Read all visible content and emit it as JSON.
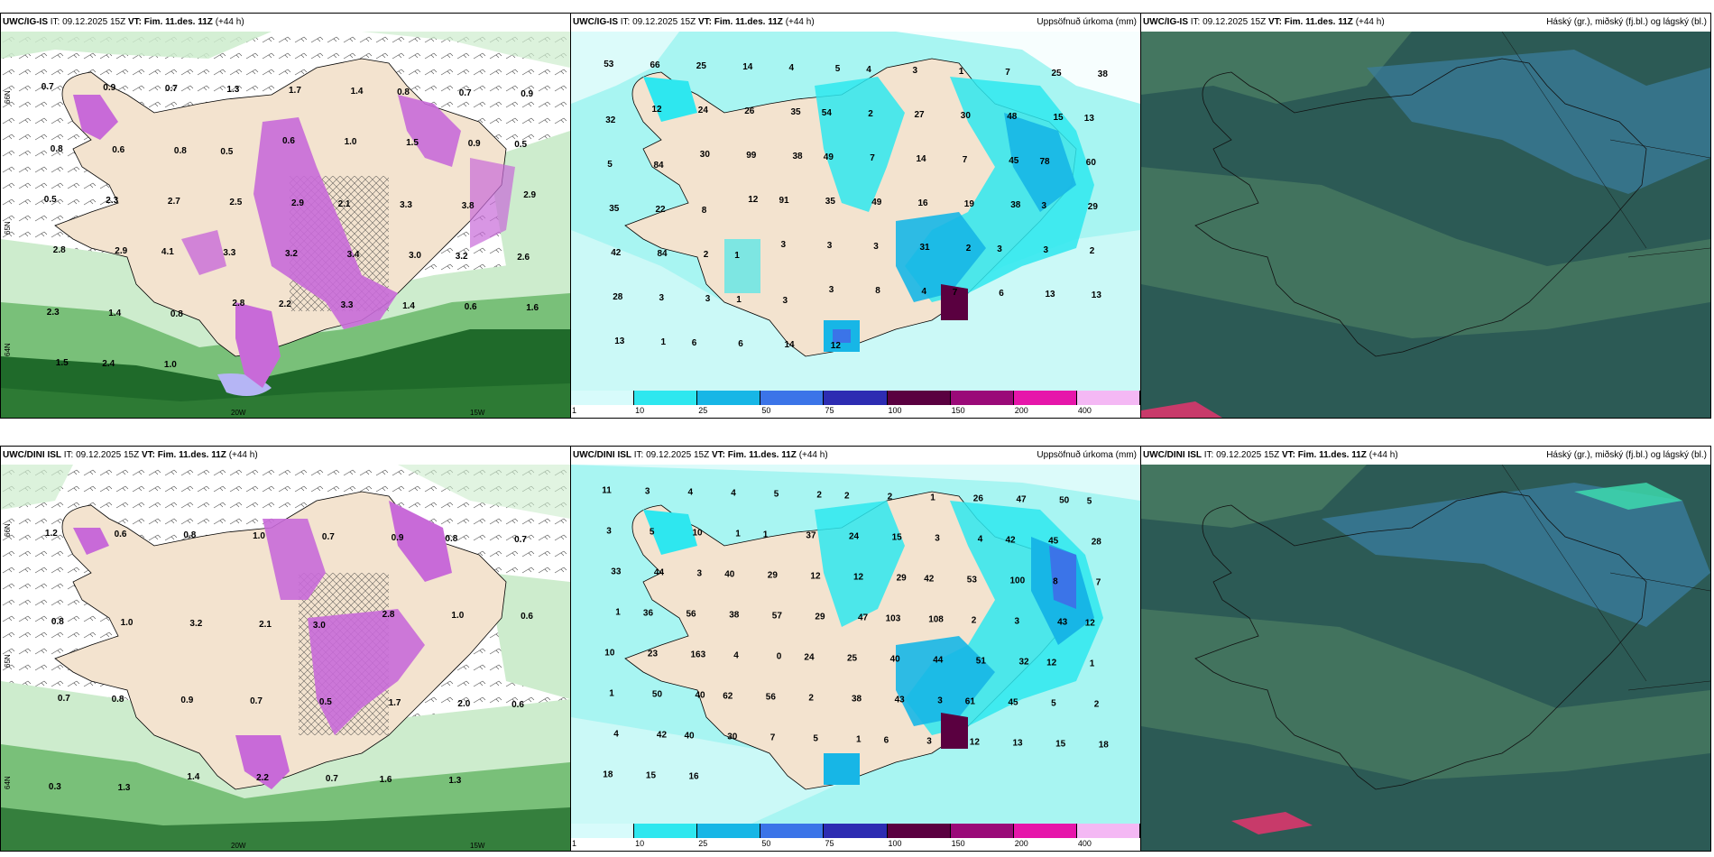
{
  "colors": {
    "land": "#f3e3cf",
    "sea": "#ffffff",
    "green_light": "#cdeccd",
    "green_mid": "#79c079",
    "green_dark": "#1f6a2a",
    "magenta": "#c86ad8",
    "precip_sea": "#a8f5f2",
    "cloud_dark": "#2c5a55",
    "cloud_mid": "#4b7d63",
    "cloud_blue": "#3a7ea0"
  },
  "legend": {
    "colors": [
      "#d7fbfb",
      "#2ee7ef",
      "#17b6e6",
      "#3b74e8",
      "#2d2cb2",
      "#5a0040",
      "#9a0a78",
      "#e616aa",
      "#f4b8f4"
    ],
    "ticks": [
      "1",
      "10",
      "25",
      "50",
      "75",
      "100",
      "150",
      "200",
      "400"
    ]
  },
  "rows": [
    {
      "model": "UWC/IG-IS",
      "it_label": "IT:",
      "it_value": "09.12.2025 15Z",
      "vt_label": "VT:",
      "vt_value": "Fim. 11.des. 11Z",
      "lead": "(+44 h)",
      "precip_title": "Uppsöfnuð úrkoma (mm)",
      "cloud_title": "Háský (gr.), miðský (fj.bl.) og lágský (bl.)",
      "axis": [
        "66N",
        "65N",
        "64N",
        "20W",
        "15W"
      ],
      "precip_values": [
        "53",
        "66",
        "25",
        "14",
        "4",
        "5",
        "4",
        "3",
        "1",
        "7",
        "25",
        "38",
        "32",
        "12",
        "24",
        "26",
        "35",
        "54",
        "2",
        "27",
        "30",
        "48",
        "15",
        "13",
        "5",
        "84",
        "30",
        "99",
        "38",
        "49",
        "7",
        "14",
        "7",
        "45",
        "78",
        "60",
        "35",
        "22",
        "8",
        "12",
        "91",
        "35",
        "49",
        "16",
        "19",
        "38",
        "3",
        "29",
        "42",
        "84",
        "2",
        "1",
        "3",
        "3",
        "3",
        "31",
        "2",
        "3",
        "3",
        "2",
        "28",
        "3",
        "3",
        "1",
        "3",
        "3",
        "8",
        "4",
        "7",
        "6",
        "13",
        "13",
        "13",
        "1",
        "6",
        "6",
        "14",
        "12"
      ],
      "cloud_note": ""
    },
    {
      "model": "UWC/DINI ISL",
      "it_label": "IT:",
      "it_value": "09.12.2025 15Z",
      "vt_label": "VT:",
      "vt_value": "Fim. 11.des. 11Z",
      "lead": "(+44 h)",
      "precip_title": "Uppsöfnuð úrkoma (mm)",
      "cloud_title": "Háský (gr.), miðský (fj.bl.) og lágský (bl.)",
      "axis": [
        "66N",
        "65N",
        "64N",
        "20W",
        "15W"
      ],
      "precip_values": [
        "11",
        "3",
        "4",
        "4",
        "5",
        "2",
        "2",
        "2",
        "1",
        "26",
        "47",
        "50",
        "5",
        "3",
        "5",
        "10",
        "1",
        "1",
        "37",
        "24",
        "15",
        "3",
        "4",
        "42",
        "45",
        "28",
        "33",
        "44",
        "3",
        "40",
        "29",
        "12",
        "12",
        "29",
        "42",
        "53",
        "100",
        "8",
        "7",
        "1",
        "36",
        "56",
        "38",
        "57",
        "29",
        "47",
        "103",
        "108",
        "2",
        "3",
        "43",
        "12",
        "10",
        "23",
        "163",
        "4",
        "0",
        "24",
        "25",
        "40",
        "44",
        "51",
        "32",
        "12",
        "1",
        "1",
        "50",
        "40",
        "62",
        "56",
        "2",
        "38",
        "43",
        "3",
        "61",
        "45",
        "5",
        "2",
        "4",
        "42",
        "40",
        "30",
        "7",
        "5",
        "1",
        "6",
        "3",
        "12",
        "13",
        "15",
        "18",
        "18",
        "15",
        "16"
      ],
      "cloud_note": ""
    }
  ],
  "wind_labels_row1": [
    "0.7",
    "0.9",
    "0.7",
    "1.3",
    "1.7",
    "1.4",
    "0.8",
    "0.7",
    "0.9",
    "0.8",
    "0.6",
    "0.8",
    "0.5",
    "0.6",
    "1.0",
    "1.5",
    "0.9",
    "0.5",
    "0.5",
    "2.3",
    "2.7",
    "2.5",
    "2.9",
    "2.1",
    "3.3",
    "3.8",
    "2.9",
    "2.8",
    "2.9",
    "4.1",
    "3.3",
    "3.2",
    "3.4",
    "3.0",
    "3.2",
    "2.6",
    "2.3",
    "1.4",
    "0.8",
    "2.8",
    "2.2",
    "3.3",
    "1.4",
    "0.6",
    "1.6",
    "1.5",
    "2.4",
    "1.0"
  ],
  "wind_labels_row2": [
    "1.2",
    "0.6",
    "0.8",
    "1.0",
    "0.7",
    "0.9",
    "0.8",
    "0.7",
    "0.8",
    "1.0",
    "3.2",
    "2.1",
    "3.0",
    "2.8",
    "1.0",
    "0.6",
    "0.7",
    "0.8",
    "0.9",
    "0.7",
    "0.5",
    "1.7",
    "2.0",
    "0.6",
    "0.3",
    "1.3",
    "1.4",
    "2.2",
    "0.7",
    "1.6",
    "1.3"
  ]
}
